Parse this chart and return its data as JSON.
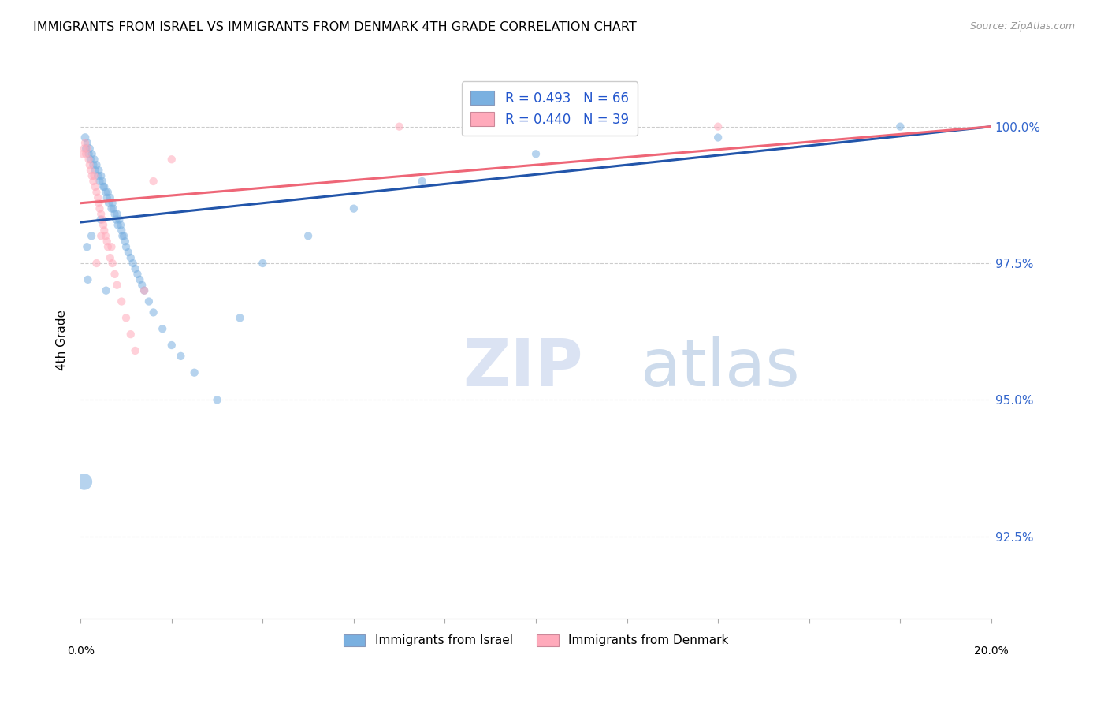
{
  "title": "IMMIGRANTS FROM ISRAEL VS IMMIGRANTS FROM DENMARK 4TH GRADE CORRELATION CHART",
  "source": "Source: ZipAtlas.com",
  "ylabel": "4th Grade",
  "ytick_labels": [
    "92.5%",
    "95.0%",
    "97.5%",
    "100.0%"
  ],
  "ytick_values": [
    92.5,
    95.0,
    97.5,
    100.0
  ],
  "xlim": [
    0.0,
    20.0
  ],
  "ylim": [
    91.0,
    101.2
  ],
  "legend_entry1": "R = 0.493   N = 66",
  "legend_entry2": "R = 0.440   N = 39",
  "legend_color1": "#7ab0e0",
  "legend_color2": "#ffaabb",
  "israel_color": "#7ab0e0",
  "denmark_color": "#ffaabb",
  "israel_line_color": "#2255aa",
  "denmark_line_color": "#ee6677",
  "watermark_zip": "ZIP",
  "watermark_atlas": "atlas",
  "israel_x": [
    0.1,
    0.12,
    0.15,
    0.18,
    0.2,
    0.22,
    0.25,
    0.28,
    0.3,
    0.32,
    0.35,
    0.38,
    0.4,
    0.42,
    0.45,
    0.48,
    0.5,
    0.52,
    0.55,
    0.58,
    0.6,
    0.62,
    0.65,
    0.68,
    0.7,
    0.72,
    0.75,
    0.78,
    0.8,
    0.82,
    0.85,
    0.88,
    0.9,
    0.92,
    0.95,
    0.98,
    1.0,
    1.05,
    1.1,
    1.15,
    1.2,
    1.25,
    1.3,
    1.35,
    1.4,
    1.5,
    1.6,
    1.8,
    2.0,
    2.2,
    2.5,
    3.0,
    3.5,
    4.0,
    5.0,
    6.0,
    7.5,
    10.0,
    14.0,
    18.0,
    0.08,
    0.14,
    0.16,
    0.24,
    0.44,
    0.56
  ],
  "israel_y": [
    99.8,
    99.6,
    99.7,
    99.5,
    99.6,
    99.4,
    99.5,
    99.3,
    99.4,
    99.2,
    99.3,
    99.1,
    99.2,
    99.0,
    99.1,
    99.0,
    98.9,
    98.9,
    98.8,
    98.7,
    98.8,
    98.6,
    98.7,
    98.5,
    98.6,
    98.5,
    98.4,
    98.3,
    98.4,
    98.2,
    98.3,
    98.2,
    98.1,
    98.0,
    98.0,
    97.9,
    97.8,
    97.7,
    97.6,
    97.5,
    97.4,
    97.3,
    97.2,
    97.1,
    97.0,
    96.8,
    96.6,
    96.3,
    96.0,
    95.8,
    95.5,
    95.0,
    96.5,
    97.5,
    98.0,
    98.5,
    99.0,
    99.5,
    99.8,
    100.0,
    93.5,
    97.8,
    97.2,
    98.0,
    98.3,
    97.0
  ],
  "israel_sizes": [
    60,
    55,
    55,
    55,
    55,
    55,
    55,
    55,
    55,
    55,
    55,
    55,
    55,
    55,
    55,
    55,
    55,
    55,
    55,
    55,
    55,
    55,
    55,
    55,
    55,
    55,
    55,
    55,
    55,
    55,
    55,
    55,
    55,
    55,
    55,
    55,
    55,
    55,
    55,
    55,
    55,
    55,
    55,
    55,
    55,
    55,
    55,
    55,
    55,
    55,
    55,
    55,
    55,
    55,
    55,
    55,
    55,
    55,
    55,
    55,
    220,
    55,
    55,
    55,
    55,
    55
  ],
  "denmark_x": [
    0.05,
    0.08,
    0.1,
    0.12,
    0.15,
    0.18,
    0.2,
    0.22,
    0.25,
    0.28,
    0.3,
    0.32,
    0.35,
    0.38,
    0.4,
    0.42,
    0.45,
    0.48,
    0.5,
    0.52,
    0.55,
    0.58,
    0.6,
    0.65,
    0.7,
    0.75,
    0.8,
    0.9,
    1.0,
    1.1,
    1.2,
    1.4,
    1.6,
    2.0,
    7.0,
    14.0,
    0.35,
    0.45,
    0.68
  ],
  "denmark_y": [
    99.5,
    99.6,
    99.7,
    99.5,
    99.6,
    99.4,
    99.3,
    99.2,
    99.1,
    99.0,
    99.1,
    98.9,
    98.8,
    98.7,
    98.6,
    98.5,
    98.4,
    98.3,
    98.2,
    98.1,
    98.0,
    97.9,
    97.8,
    97.6,
    97.5,
    97.3,
    97.1,
    96.8,
    96.5,
    96.2,
    95.9,
    97.0,
    99.0,
    99.4,
    100.0,
    100.0,
    97.5,
    98.0,
    97.8
  ],
  "denmark_sizes": [
    55,
    55,
    55,
    55,
    55,
    55,
    55,
    55,
    55,
    55,
    55,
    55,
    55,
    55,
    55,
    55,
    55,
    55,
    55,
    55,
    55,
    55,
    55,
    55,
    55,
    55,
    55,
    55,
    55,
    55,
    55,
    55,
    55,
    55,
    55,
    55,
    55,
    55,
    55
  ],
  "israel_line_x": [
    0.0,
    20.0
  ],
  "israel_line_y": [
    98.25,
    100.0
  ],
  "denmark_line_x": [
    0.0,
    20.0
  ],
  "denmark_line_y": [
    98.6,
    100.0
  ]
}
